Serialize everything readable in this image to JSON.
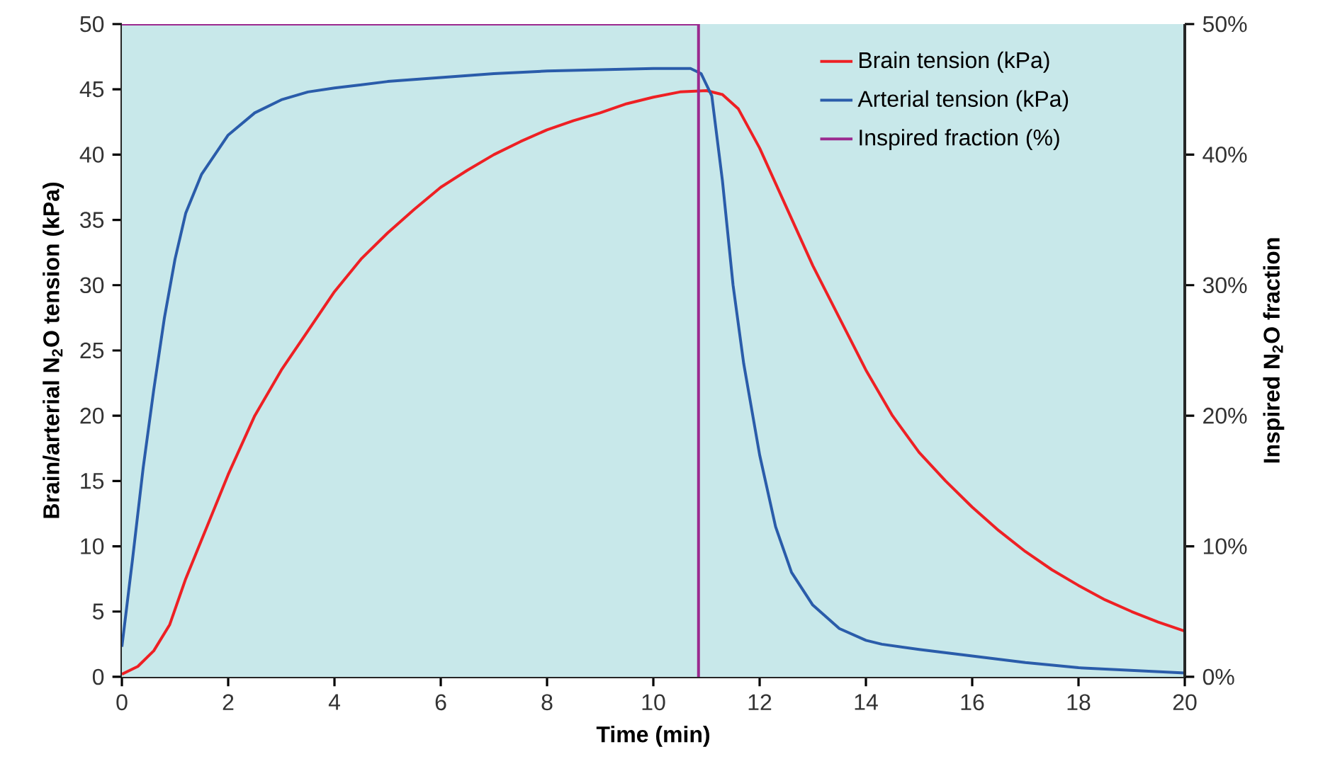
{
  "chart_data": {
    "type": "line",
    "xlabel": "Time (min)",
    "ylabel": "Brain/arterial N$_{2}$O tension (kPa)",
    "y2label": "Inspired N$_{2}$O fraction",
    "xlim": [
      0,
      20
    ],
    "xticks": [
      0,
      2,
      4,
      6,
      8,
      10,
      12,
      14,
      16,
      18,
      20
    ],
    "ylim": [
      0,
      50
    ],
    "yticks": [
      0,
      5,
      10,
      15,
      20,
      25,
      30,
      35,
      40,
      45,
      50
    ],
    "y2lim": [
      0,
      50
    ],
    "y2ticks": [
      {
        "value": 0,
        "label": "0%"
      },
      {
        "value": 10,
        "label": "10%"
      },
      {
        "value": 20,
        "label": "20%"
      },
      {
        "value": 30,
        "label": "30%"
      },
      {
        "value": 40,
        "label": "40%"
      },
      {
        "value": 50,
        "label": "50%"
      }
    ],
    "legend": "top right",
    "grid": false,
    "line_style": "solid",
    "marker": "none",
    "series": [
      {
        "name": "Brain tension (kPa)",
        "color": "#ee2024",
        "x": [
          0,
          0.3,
          0.6,
          0.9,
          1.2,
          1.6,
          2,
          2.5,
          3,
          3.5,
          4,
          4.5,
          5,
          5.5,
          6,
          6.5,
          7,
          7.5,
          8,
          8.5,
          9,
          9.5,
          10,
          10.5,
          11,
          11.3,
          11.6,
          12,
          12.5,
          13,
          13.5,
          14,
          14.5,
          15,
          15.5,
          16,
          16.5,
          17,
          17.5,
          18,
          18.5,
          19,
          19.5,
          20
        ],
        "values": [
          0.2,
          0.8,
          2,
          4,
          7.5,
          11.5,
          15.5,
          20,
          23.5,
          26.5,
          29.5,
          32,
          34,
          35.8,
          37.5,
          38.8,
          40,
          41,
          41.9,
          42.6,
          43.2,
          43.9,
          44.4,
          44.8,
          44.9,
          44.6,
          43.5,
          40.5,
          36,
          31.5,
          27.5,
          23.5,
          20,
          17.2,
          15,
          13,
          11.2,
          9.6,
          8.2,
          7,
          5.9,
          5,
          4.2,
          3.5
        ]
      },
      {
        "name": "Arterial tension (kPa)",
        "color": "#2a5caa",
        "x": [
          0,
          0.2,
          0.4,
          0.6,
          0.8,
          1,
          1.2,
          1.5,
          2,
          2.5,
          3,
          3.5,
          4,
          5,
          6,
          7,
          8,
          9,
          10,
          10.7,
          10.9,
          11.1,
          11.3,
          11.5,
          11.7,
          12,
          12.3,
          12.6,
          13,
          13.5,
          14,
          14.3,
          15,
          16,
          17,
          18,
          19,
          20
        ],
        "values": [
          2.3,
          9,
          16,
          22,
          27.5,
          32,
          35.5,
          38.5,
          41.5,
          43.2,
          44.2,
          44.8,
          45.1,
          45.6,
          45.9,
          46.2,
          46.4,
          46.5,
          46.6,
          46.6,
          46.2,
          44.5,
          38,
          30,
          24,
          17,
          11.5,
          8,
          5.5,
          3.7,
          2.8,
          2.5,
          2.1,
          1.6,
          1.1,
          0.7,
          0.5,
          0.3
        ]
      },
      {
        "name": "Inspired fraction (%)",
        "color": "#9b2a8f",
        "axis": "y2",
        "x": [
          0,
          10.85,
          10.85
        ],
        "values": [
          50,
          50,
          0
        ]
      }
    ]
  }
}
